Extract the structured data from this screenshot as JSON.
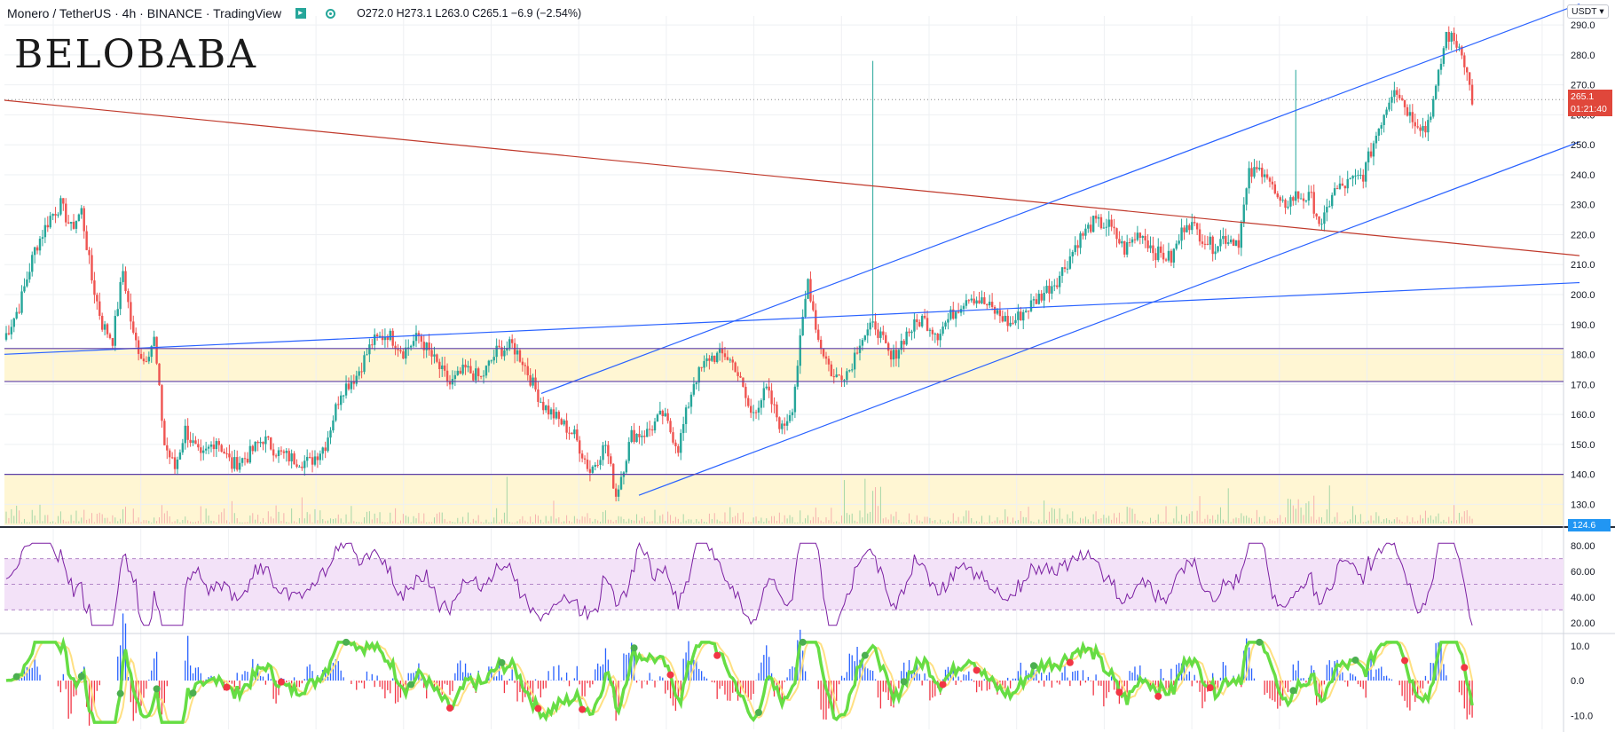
{
  "header": {
    "symbol": "Monero / TetherUS · 4h · BINANCE · TradingView",
    "ohlc": "O272.0  H273.1  L263.0  C265.1  −6.9 (−2.54%)"
  },
  "logo": "BELOBABA",
  "currency": "USDT",
  "last_price": "265.1",
  "countdown": "01:21:40",
  "low_label": "124.6",
  "colors": {
    "up": "#26a69a",
    "down": "#ef5350",
    "rsi": "#7b1fa2",
    "trend_red": "#c0392b",
    "channel_blue": "#2962ff",
    "zone": "#fff3c4"
  },
  "chart_data": [
    {
      "type": "candlestick",
      "pane": "price",
      "yticks": [
        130.0,
        140.0,
        150.0,
        160.0,
        170.0,
        180.0,
        190.0,
        200.0,
        210.0,
        220.0,
        230.0,
        240.0,
        250.0,
        260.0,
        270.0,
        280.0,
        290.0
      ],
      "ylim": [
        123,
        293
      ],
      "close_path": [
        [
          0,
          185
        ],
        [
          6,
          196
        ],
        [
          12,
          215
        ],
        [
          18,
          226
        ],
        [
          22,
          230
        ],
        [
          26,
          222
        ],
        [
          30,
          228
        ],
        [
          34,
          205
        ],
        [
          38,
          190
        ],
        [
          42,
          185
        ],
        [
          46,
          208
        ],
        [
          50,
          186
        ],
        [
          54,
          178
        ],
        [
          58,
          185
        ],
        [
          62,
          150
        ],
        [
          66,
          142
        ],
        [
          70,
          155
        ],
        [
          76,
          145
        ],
        [
          82,
          152
        ],
        [
          88,
          143
        ],
        [
          94,
          146
        ],
        [
          100,
          152
        ],
        [
          106,
          147
        ],
        [
          112,
          145
        ],
        [
          118,
          144
        ],
        [
          124,
          150
        ],
        [
          130,
          168
        ],
        [
          136,
          173
        ],
        [
          142,
          184
        ],
        [
          148,
          187
        ],
        [
          154,
          181
        ],
        [
          160,
          186
        ],
        [
          166,
          178
        ],
        [
          172,
          170
        ],
        [
          178,
          175
        ],
        [
          184,
          172
        ],
        [
          190,
          181
        ],
        [
          196,
          183
        ],
        [
          200,
          178
        ],
        [
          204,
          170
        ],
        [
          208,
          163
        ],
        [
          214,
          158
        ],
        [
          220,
          153
        ],
        [
          226,
          141
        ],
        [
          232,
          150
        ],
        [
          236,
          133
        ],
        [
          242,
          153
        ],
        [
          248,
          154
        ],
        [
          254,
          160
        ],
        [
          260,
          149
        ],
        [
          266,
          171
        ],
        [
          272,
          179
        ],
        [
          278,
          180
        ],
        [
          282,
          176
        ],
        [
          288,
          160
        ],
        [
          294,
          168
        ],
        [
          300,
          155
        ],
        [
          304,
          163
        ],
        [
          310,
          205
        ],
        [
          314,
          185
        ],
        [
          320,
          172
        ],
        [
          326,
          175
        ],
        [
          330,
          185
        ],
        [
          336,
          190
        ],
        [
          342,
          178
        ],
        [
          348,
          187
        ],
        [
          354,
          192
        ],
        [
          360,
          187
        ],
        [
          366,
          194
        ],
        [
          372,
          200
        ],
        [
          378,
          197
        ],
        [
          384,
          193
        ],
        [
          388,
          190
        ],
        [
          394,
          195
        ],
        [
          400,
          200
        ],
        [
          406,
          205
        ],
        [
          410,
          211
        ],
        [
          414,
          218
        ],
        [
          420,
          224
        ],
        [
          426,
          223
        ],
        [
          432,
          215
        ],
        [
          438,
          221
        ],
        [
          444,
          214
        ],
        [
          450,
          212
        ],
        [
          456,
          225
        ],
        [
          460,
          221
        ],
        [
          466,
          216
        ],
        [
          470,
          219
        ],
        [
          476,
          218
        ],
        [
          480,
          240
        ],
        [
          486,
          242
        ],
        [
          492,
          229
        ],
        [
          498,
          233
        ],
        [
          504,
          232
        ],
        [
          508,
          222
        ],
        [
          512,
          234
        ],
        [
          518,
          237
        ],
        [
          524,
          240
        ],
        [
          530,
          256
        ],
        [
          536,
          270
        ],
        [
          542,
          260
        ],
        [
          548,
          255
        ],
        [
          552,
          268
        ],
        [
          556,
          287
        ],
        [
          562,
          282
        ],
        [
          566,
          265
        ]
      ],
      "close_n": 566
    },
    {
      "type": "bar",
      "pane": "volume",
      "note": "volume histogram along the bottom of the price pane"
    },
    {
      "type": "line",
      "pane": "rsi",
      "yticks": [
        20.0,
        40.0,
        60.0,
        80.0
      ],
      "ylim": [
        13,
        87
      ],
      "band": [
        30,
        70
      ]
    },
    {
      "type": "line",
      "pane": "oscillator",
      "yticks": [
        10.0,
        0.0,
        -10.0
      ],
      "ylim": [
        -14,
        13
      ]
    }
  ],
  "annotations": {
    "zones": [
      [
        171,
        182
      ],
      [
        123,
        140
      ]
    ],
    "hlines": [
      182,
      171,
      140
    ],
    "trendlines": [
      {
        "color": "red",
        "p1": [
          0,
          265
        ],
        "p2": [
          1780,
          213
        ]
      },
      {
        "color": "blue",
        "p1": [
          0,
          180
        ],
        "p2": [
          1780,
          204
        ]
      },
      {
        "color": "blue",
        "p1": [
          610,
          167
        ],
        "p2": [
          1780,
          297
        ]
      },
      {
        "color": "blue",
        "p1": [
          720,
          133
        ],
        "p2": [
          1780,
          251
        ]
      }
    ]
  }
}
